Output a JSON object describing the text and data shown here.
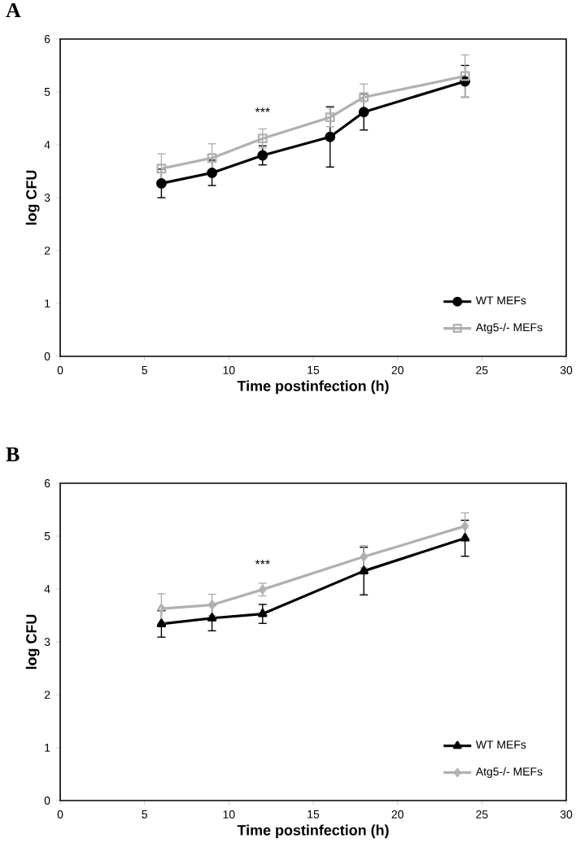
{
  "chart_data": [
    {
      "type": "line",
      "title": "A",
      "xlabel": "Time postinfection (h)",
      "ylabel": "log CFU",
      "x": [
        6,
        9,
        12,
        16,
        18,
        24
      ],
      "series": [
        {
          "name": "WT MEFs",
          "color": "#000000",
          "marker": "circle",
          "values": [
            3.27,
            3.47,
            3.8,
            4.15,
            4.62,
            5.2
          ],
          "errors": [
            0.27,
            0.24,
            0.18,
            0.57,
            0.34,
            0.3
          ]
        },
        {
          "name": "Atg5-/- MEFs",
          "color": "#b0b0b0",
          "marker": "square",
          "values": [
            3.55,
            3.75,
            4.12,
            4.52,
            4.9,
            5.3
          ],
          "errors": [
            0.28,
            0.27,
            0.18,
            0.18,
            0.25,
            0.4
          ]
        }
      ],
      "xlim": [
        0,
        30
      ],
      "xticks": [
        0,
        5,
        10,
        15,
        20,
        25,
        30
      ],
      "ylim": [
        0,
        6
      ],
      "yticks": [
        0,
        1,
        2,
        3,
        4,
        5,
        6
      ],
      "legend": "bottom right",
      "grid": false,
      "annotations": [
        "***"
      ]
    },
    {
      "type": "line",
      "title": "B",
      "xlabel": "Time postinfection (h)",
      "ylabel": "log CFU",
      "x": [
        6,
        9,
        12,
        18,
        24
      ],
      "series": [
        {
          "name": "WT MEFs",
          "color": "#000000",
          "marker": "triangle",
          "values": [
            3.34,
            3.45,
            3.53,
            4.34,
            4.96
          ],
          "errors": [
            0.25,
            0.24,
            0.18,
            0.45,
            0.34
          ]
        },
        {
          "name": "Atg5-/- MEFs",
          "color": "#b0b0b0",
          "marker": "diamond",
          "values": [
            3.63,
            3.7,
            3.99,
            4.61,
            5.19
          ],
          "errors": [
            0.28,
            0.2,
            0.12,
            0.21,
            0.25
          ]
        }
      ],
      "xlim": [
        0,
        30
      ],
      "xticks": [
        0,
        5,
        10,
        15,
        20,
        25,
        30
      ],
      "ylim": [
        0,
        6
      ],
      "yticks": [
        0,
        1,
        2,
        3,
        4,
        5,
        6
      ],
      "legend": "bottom right",
      "grid": false,
      "annotations": [
        "***"
      ]
    }
  ]
}
